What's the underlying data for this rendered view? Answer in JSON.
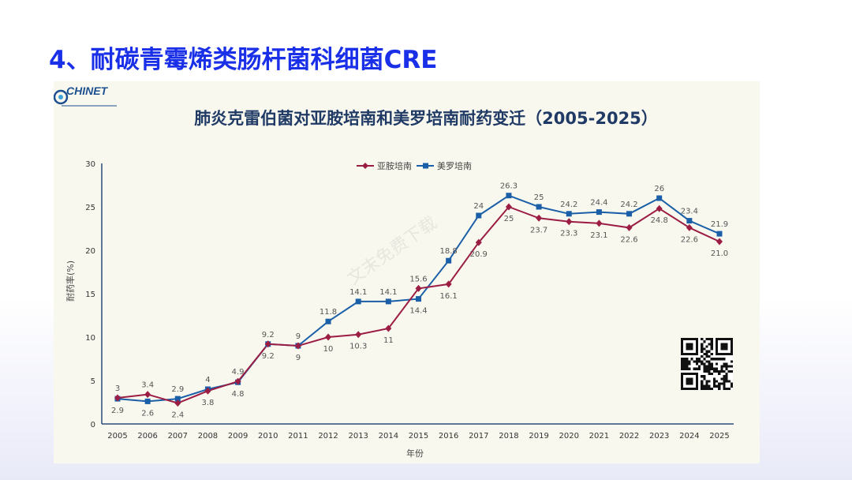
{
  "slide": {
    "title": "4、耐碳青霉烯类肠杆菌科细菌CRE"
  },
  "logo": {
    "text": "CHINET"
  },
  "watermark": "文末免费下载",
  "chart_data": {
    "type": "line",
    "title": "肺炎克雷伯菌对亚胺培南和美罗培南耐药变迁（2005-2025）",
    "xlabel": "年份",
    "ylabel": "耐药率(%)",
    "ylim": [
      0,
      30
    ],
    "yticks": [
      0,
      5,
      10,
      15,
      20,
      25,
      30
    ],
    "legend_position": "top-center",
    "x": [
      "2005",
      "2006",
      "2007",
      "2008",
      "2009",
      "2010",
      "2011",
      "2012",
      "2013",
      "2014",
      "2015",
      "2016",
      "2017",
      "2018",
      "2019",
      "2020",
      "2021",
      "2022",
      "2023",
      "2024",
      "2025"
    ],
    "series": [
      {
        "name": "亚胺培南",
        "color": "#9b1d44",
        "marker": "diamond",
        "values": [
          3,
          3.4,
          2.4,
          3.8,
          4.9,
          9.2,
          9,
          10,
          10.3,
          11,
          15.6,
          16.1,
          20.9,
          25,
          23.7,
          23.3,
          23.1,
          22.6,
          24.8,
          22.6,
          21.0
        ],
        "labels": [
          "3",
          "3.4",
          "2.4",
          "3.8",
          "4.9",
          "9.2",
          "9",
          "10",
          "10.3",
          "11",
          "15.6",
          "16.1",
          "20.9",
          "25",
          "23.7",
          "23.3",
          "23.1",
          "22.6",
          "24.8",
          "22.6",
          "21.0"
        ]
      },
      {
        "name": "美罗培南",
        "color": "#1a5fa8",
        "marker": "square",
        "values": [
          2.9,
          2.6,
          2.9,
          4,
          4.8,
          9.2,
          9,
          11.8,
          14.1,
          14.1,
          14.4,
          18.8,
          24,
          26.3,
          25,
          24.2,
          24.4,
          24.2,
          26,
          23.4,
          21.9
        ],
        "labels": [
          "2.9",
          "2.6",
          "2.9",
          "4",
          "4.8",
          "9.2",
          "9",
          "11.8",
          "14.1",
          "14.1",
          "14.4",
          "18.8",
          "24",
          "26.3",
          "25",
          "24.2",
          "24.4",
          "24.2",
          "26",
          "23.4",
          "21.9"
        ]
      }
    ]
  }
}
